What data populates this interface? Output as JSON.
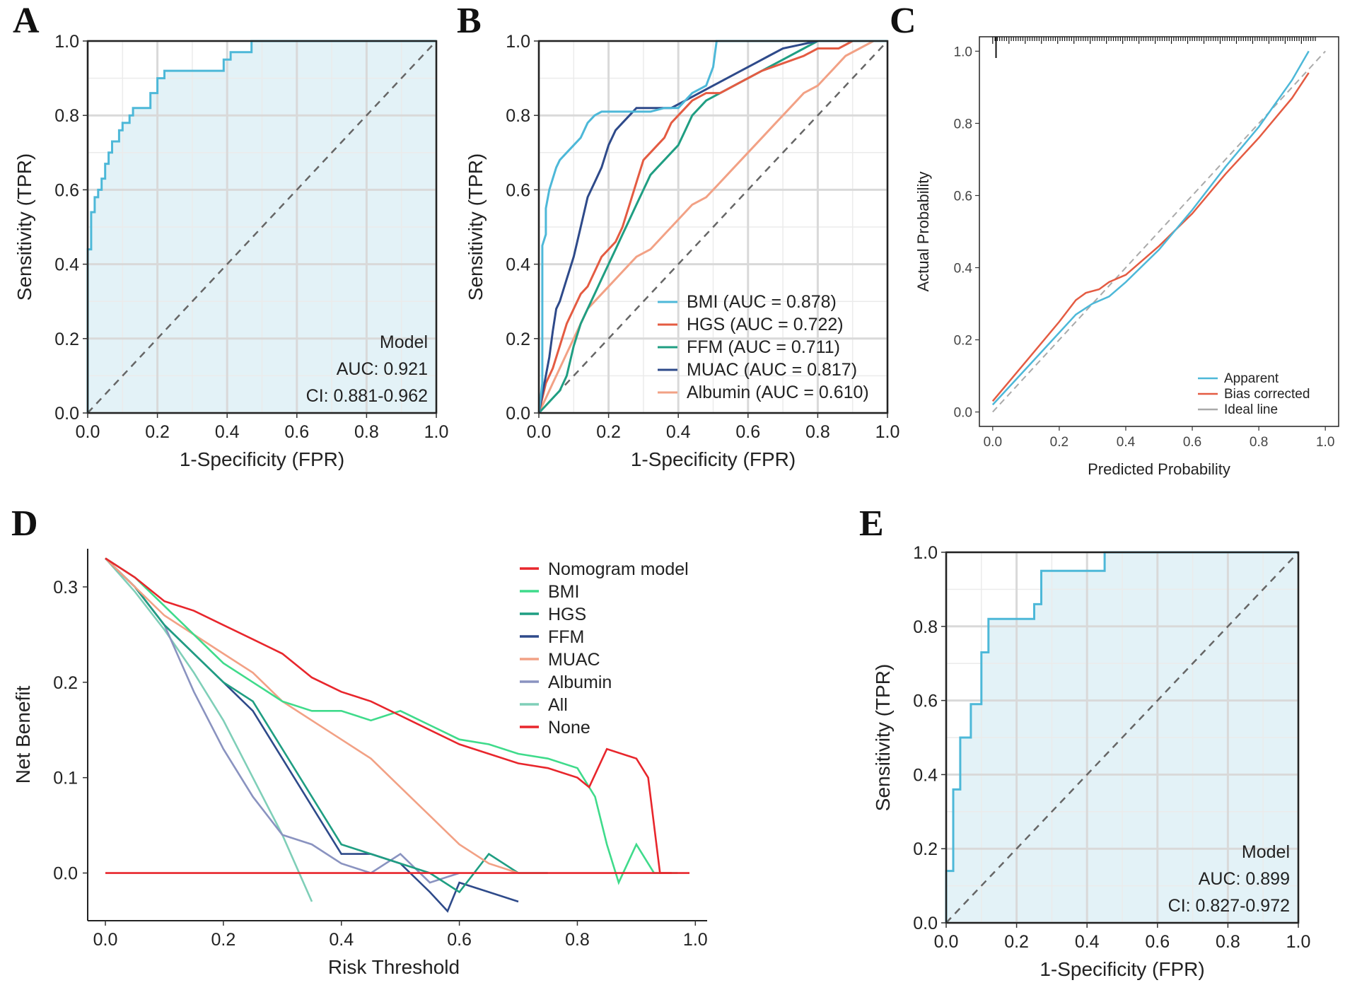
{
  "panels": {
    "A": "A",
    "B": "B",
    "C": "C",
    "D": "D",
    "E": "E"
  },
  "chart_data": [
    {
      "id": "A",
      "type": "line",
      "title": "",
      "xlabel": "1-Specificity (FPR)",
      "ylabel": "Sensitivity (TPR)",
      "xlim": [
        0,
        1
      ],
      "ylim": [
        0,
        1
      ],
      "xticks": [
        "0.0",
        "0.2",
        "0.4",
        "0.6",
        "0.8",
        "1.0"
      ],
      "yticks": [
        "0.0",
        "0.2",
        "0.4",
        "0.6",
        "0.8",
        "1.0"
      ],
      "grid": true,
      "color": "#4DB8D8",
      "fill": "#E3F2F7",
      "diagonal": true,
      "annotation": {
        "title": "Model",
        "auc": "AUC: 0.921",
        "ci": "CI: 0.881-0.962"
      },
      "x": [
        0,
        0,
        0.01,
        0.01,
        0.02,
        0.02,
        0.03,
        0.03,
        0.04,
        0.04,
        0.05,
        0.05,
        0.06,
        0.06,
        0.07,
        0.07,
        0.09,
        0.09,
        0.1,
        0.1,
        0.12,
        0.12,
        0.13,
        0.13,
        0.18,
        0.18,
        0.2,
        0.2,
        0.22,
        0.22,
        0.39,
        0.39,
        0.41,
        0.41,
        0.47,
        0.47,
        1.0
      ],
      "y": [
        0,
        0.44,
        0.44,
        0.54,
        0.54,
        0.58,
        0.58,
        0.6,
        0.6,
        0.63,
        0.63,
        0.67,
        0.67,
        0.7,
        0.7,
        0.73,
        0.73,
        0.76,
        0.76,
        0.78,
        0.78,
        0.8,
        0.8,
        0.82,
        0.82,
        0.86,
        0.86,
        0.9,
        0.9,
        0.92,
        0.92,
        0.95,
        0.95,
        0.97,
        0.97,
        1.0,
        1.0
      ]
    },
    {
      "id": "B",
      "type": "line",
      "title": "",
      "xlabel": "1-Specificity (FPR)",
      "ylabel": "Sensitivity (TPR)",
      "xlim": [
        0,
        1
      ],
      "ylim": [
        0,
        1
      ],
      "xticks": [
        "0.0",
        "0.2",
        "0.4",
        "0.6",
        "0.8",
        "1.0"
      ],
      "yticks": [
        "0.0",
        "0.2",
        "0.4",
        "0.6",
        "0.8",
        "1.0"
      ],
      "grid": true,
      "diagonal": true,
      "series": [
        {
          "name": "BMI (AUC = 0.878)",
          "color": "#4DB8D8",
          "x": [
            0,
            0.01,
            0.01,
            0.02,
            0.02,
            0.03,
            0.04,
            0.05,
            0.06,
            0.08,
            0.1,
            0.12,
            0.14,
            0.16,
            0.18,
            0.2,
            0.24,
            0.28,
            0.32,
            0.36,
            0.4,
            0.44,
            0.48,
            0.5,
            0.51,
            0.55,
            0.6,
            0.7,
            0.8,
            0.9,
            1.0
          ],
          "y": [
            0,
            0.08,
            0.45,
            0.48,
            0.55,
            0.6,
            0.63,
            0.66,
            0.68,
            0.7,
            0.72,
            0.74,
            0.78,
            0.8,
            0.81,
            0.81,
            0.81,
            0.81,
            0.81,
            0.82,
            0.82,
            0.86,
            0.88,
            0.93,
            1.0,
            1.0,
            1.0,
            1.0,
            1.0,
            1.0,
            1.0
          ]
        },
        {
          "name": "HGS (AUC = 0.722)",
          "color": "#E45B42",
          "x": [
            0,
            0.02,
            0.04,
            0.06,
            0.08,
            0.1,
            0.12,
            0.14,
            0.16,
            0.18,
            0.2,
            0.22,
            0.24,
            0.26,
            0.28,
            0.3,
            0.32,
            0.34,
            0.36,
            0.38,
            0.4,
            0.42,
            0.44,
            0.48,
            0.52,
            0.56,
            0.6,
            0.64,
            0.7,
            0.76,
            0.8,
            0.86,
            0.9,
            1.0
          ],
          "y": [
            0,
            0.08,
            0.12,
            0.18,
            0.24,
            0.28,
            0.32,
            0.34,
            0.38,
            0.42,
            0.44,
            0.46,
            0.5,
            0.56,
            0.62,
            0.68,
            0.7,
            0.72,
            0.74,
            0.78,
            0.8,
            0.82,
            0.84,
            0.86,
            0.86,
            0.88,
            0.9,
            0.92,
            0.94,
            0.96,
            0.98,
            0.98,
            1.0,
            1.0
          ]
        },
        {
          "name": "FFM (AUC = 0.711)",
          "color": "#1F9E82",
          "x": [
            0,
            0.02,
            0.04,
            0.06,
            0.08,
            0.1,
            0.12,
            0.14,
            0.16,
            0.18,
            0.2,
            0.22,
            0.24,
            0.26,
            0.28,
            0.3,
            0.32,
            0.34,
            0.36,
            0.38,
            0.4,
            0.42,
            0.44,
            0.48,
            0.52,
            0.56,
            0.6,
            0.64,
            0.7,
            0.76,
            0.8,
            0.9,
            1.0
          ],
          "y": [
            0,
            0.02,
            0.04,
            0.06,
            0.1,
            0.18,
            0.24,
            0.28,
            0.32,
            0.36,
            0.4,
            0.44,
            0.48,
            0.52,
            0.56,
            0.6,
            0.64,
            0.66,
            0.68,
            0.7,
            0.72,
            0.76,
            0.8,
            0.84,
            0.86,
            0.88,
            0.9,
            0.92,
            0.95,
            0.98,
            1.0,
            1.0,
            1.0
          ]
        },
        {
          "name": "MUAC (AUC = 0.817)",
          "color": "#2E4A8A",
          "x": [
            0,
            0.01,
            0.02,
            0.03,
            0.04,
            0.05,
            0.06,
            0.08,
            0.1,
            0.12,
            0.14,
            0.16,
            0.18,
            0.2,
            0.22,
            0.24,
            0.26,
            0.28,
            0.3,
            0.34,
            0.38,
            0.42,
            0.46,
            0.5,
            0.54,
            0.58,
            0.62,
            0.66,
            0.7,
            0.8,
            0.9,
            1.0
          ],
          "y": [
            0,
            0.05,
            0.1,
            0.15,
            0.22,
            0.28,
            0.3,
            0.36,
            0.42,
            0.5,
            0.58,
            0.62,
            0.66,
            0.72,
            0.76,
            0.78,
            0.8,
            0.82,
            0.82,
            0.82,
            0.82,
            0.84,
            0.86,
            0.88,
            0.9,
            0.92,
            0.94,
            0.96,
            0.98,
            1.0,
            1.0,
            1.0
          ]
        },
        {
          "name": "Albumin (AUC = 0.610)",
          "color": "#F2A185",
          "x": [
            0,
            0.02,
            0.04,
            0.06,
            0.08,
            0.1,
            0.12,
            0.14,
            0.16,
            0.18,
            0.2,
            0.24,
            0.28,
            0.32,
            0.36,
            0.4,
            0.44,
            0.48,
            0.52,
            0.56,
            0.6,
            0.64,
            0.68,
            0.72,
            0.76,
            0.8,
            0.84,
            0.88,
            0.92,
            0.96,
            1.0
          ],
          "y": [
            0,
            0.04,
            0.08,
            0.12,
            0.16,
            0.2,
            0.24,
            0.28,
            0.3,
            0.32,
            0.34,
            0.38,
            0.42,
            0.44,
            0.48,
            0.52,
            0.56,
            0.58,
            0.62,
            0.66,
            0.7,
            0.74,
            0.78,
            0.82,
            0.86,
            0.88,
            0.92,
            0.96,
            0.98,
            1.0,
            1.0
          ]
        }
      ]
    },
    {
      "id": "C",
      "type": "line",
      "title": "",
      "xlabel": "Predicted Probability",
      "ylabel": "Actual Probability",
      "xlim": [
        0,
        1
      ],
      "ylim": [
        0,
        1
      ],
      "xticks": [
        "0.0",
        "0.2",
        "0.4",
        "0.6",
        "0.8",
        "1.0"
      ],
      "yticks": [
        "0.0",
        "0.2",
        "0.4",
        "0.6",
        "0.8",
        "1.0"
      ],
      "grid": false,
      "series": [
        {
          "name": "Apparent",
          "color": "#4DB8D8",
          "x": [
            0,
            0.1,
            0.2,
            0.25,
            0.3,
            0.35,
            0.4,
            0.5,
            0.6,
            0.7,
            0.8,
            0.9,
            0.95
          ],
          "y": [
            0.02,
            0.12,
            0.22,
            0.27,
            0.3,
            0.32,
            0.36,
            0.45,
            0.56,
            0.68,
            0.79,
            0.92,
            1.0
          ]
        },
        {
          "name": "Bias corrected",
          "color": "#E45B42",
          "x": [
            0,
            0.1,
            0.2,
            0.25,
            0.28,
            0.32,
            0.35,
            0.4,
            0.5,
            0.6,
            0.7,
            0.8,
            0.9,
            0.95
          ],
          "y": [
            0.03,
            0.14,
            0.25,
            0.31,
            0.33,
            0.34,
            0.36,
            0.38,
            0.46,
            0.55,
            0.66,
            0.76,
            0.87,
            0.94
          ]
        },
        {
          "name": "Ideal line",
          "color": "#AAAAAA",
          "dashed": true,
          "x": [
            0,
            1
          ],
          "y": [
            0,
            1
          ]
        }
      ]
    },
    {
      "id": "D",
      "type": "line",
      "title": "",
      "xlabel": "Risk Threshold",
      "ylabel": "Net Benefit",
      "xlim": [
        -0.03,
        1.02
      ],
      "ylim": [
        -0.05,
        0.34
      ],
      "xticks": [
        "0.0",
        "0.2",
        "0.4",
        "0.6",
        "0.8",
        "1.0"
      ],
      "yticks": [
        "0.0",
        "0.1",
        "0.2",
        "0.3"
      ],
      "grid": false,
      "series": [
        {
          "name": "Nomogram model",
          "color": "#E8262C",
          "x": [
            0,
            0.05,
            0.1,
            0.15,
            0.2,
            0.25,
            0.3,
            0.35,
            0.4,
            0.45,
            0.5,
            0.55,
            0.6,
            0.65,
            0.7,
            0.75,
            0.8,
            0.82,
            0.85,
            0.9,
            0.92,
            0.94,
            0.96
          ],
          "y": [
            0.33,
            0.31,
            0.285,
            0.275,
            0.26,
            0.245,
            0.23,
            0.205,
            0.19,
            0.18,
            0.165,
            0.15,
            0.135,
            0.125,
            0.115,
            0.11,
            0.1,
            0.09,
            0.13,
            0.12,
            0.1,
            0.0,
            0.0
          ]
        },
        {
          "name": "BMI",
          "color": "#3FDB8B",
          "x": [
            0,
            0.05,
            0.1,
            0.15,
            0.2,
            0.25,
            0.3,
            0.35,
            0.4,
            0.45,
            0.5,
            0.55,
            0.6,
            0.65,
            0.7,
            0.75,
            0.8,
            0.83,
            0.85,
            0.87,
            0.9,
            0.93,
            0.97
          ],
          "y": [
            0.33,
            0.31,
            0.28,
            0.25,
            0.22,
            0.2,
            0.18,
            0.17,
            0.17,
            0.16,
            0.17,
            0.155,
            0.14,
            0.135,
            0.125,
            0.12,
            0.11,
            0.08,
            0.03,
            -0.01,
            0.03,
            0.0,
            0.0
          ]
        },
        {
          "name": "HGS",
          "color": "#1F9E82",
          "x": [
            0,
            0.05,
            0.1,
            0.15,
            0.2,
            0.25,
            0.3,
            0.35,
            0.4,
            0.45,
            0.5,
            0.55,
            0.6,
            0.65,
            0.7,
            0.75
          ],
          "y": [
            0.33,
            0.3,
            0.26,
            0.23,
            0.2,
            0.18,
            0.13,
            0.08,
            0.03,
            0.02,
            0.01,
            0.0,
            -0.02,
            0.02,
            0.0,
            0.0
          ]
        },
        {
          "name": "FFM",
          "color": "#2E4A8A",
          "x": [
            0,
            0.05,
            0.1,
            0.15,
            0.2,
            0.25,
            0.3,
            0.35,
            0.4,
            0.45,
            0.5,
            0.55,
            0.58,
            0.6,
            0.65,
            0.7
          ],
          "y": [
            0.33,
            0.3,
            0.26,
            0.23,
            0.2,
            0.17,
            0.12,
            0.07,
            0.02,
            0.02,
            0.01,
            -0.02,
            -0.04,
            -0.01,
            -0.02,
            -0.03
          ]
        },
        {
          "name": "MUAC",
          "color": "#F2A185",
          "x": [
            0,
            0.05,
            0.1,
            0.15,
            0.2,
            0.25,
            0.3,
            0.35,
            0.4,
            0.45,
            0.5,
            0.55,
            0.6,
            0.65,
            0.7
          ],
          "y": [
            0.33,
            0.3,
            0.27,
            0.25,
            0.23,
            0.21,
            0.18,
            0.16,
            0.14,
            0.12,
            0.09,
            0.06,
            0.03,
            0.01,
            0.0
          ]
        },
        {
          "name": "Albumin",
          "color": "#8A93C0",
          "x": [
            0,
            0.05,
            0.1,
            0.15,
            0.2,
            0.25,
            0.3,
            0.35,
            0.4,
            0.45,
            0.5,
            0.55,
            0.6
          ],
          "y": [
            0.33,
            0.3,
            0.26,
            0.19,
            0.13,
            0.08,
            0.04,
            0.03,
            0.01,
            0.0,
            0.02,
            -0.01,
            0.0
          ]
        },
        {
          "name": "All",
          "color": "#7FCFB8",
          "x": [
            0,
            0.05,
            0.1,
            0.15,
            0.2,
            0.25,
            0.3,
            0.35
          ],
          "y": [
            0.33,
            0.295,
            0.255,
            0.21,
            0.16,
            0.1,
            0.04,
            -0.03
          ]
        },
        {
          "name": "None",
          "color": "#E8262C",
          "x": [
            0,
            0.99
          ],
          "y": [
            0,
            0
          ]
        }
      ]
    },
    {
      "id": "E",
      "type": "line",
      "title": "",
      "xlabel": "1-Specificity (FPR)",
      "ylabel": "Sensitivity (TPR)",
      "xlim": [
        0,
        1
      ],
      "ylim": [
        0,
        1
      ],
      "xticks": [
        "0.0",
        "0.2",
        "0.4",
        "0.6",
        "0.8",
        "1.0"
      ],
      "yticks": [
        "0.0",
        "0.2",
        "0.4",
        "0.6",
        "0.8",
        "1.0"
      ],
      "grid": true,
      "color": "#4DB8D8",
      "fill": "#E3F2F7",
      "diagonal": true,
      "annotation": {
        "title": "Model",
        "auc": "AUC: 0.899",
        "ci": "CI: 0.827-0.972"
      },
      "x": [
        0,
        0,
        0.02,
        0.02,
        0.04,
        0.04,
        0.07,
        0.07,
        0.1,
        0.1,
        0.12,
        0.12,
        0.14,
        0.14,
        0.25,
        0.25,
        0.27,
        0.27,
        0.45,
        0.45,
        1.0
      ],
      "y": [
        0,
        0.14,
        0.14,
        0.36,
        0.36,
        0.5,
        0.5,
        0.59,
        0.59,
        0.73,
        0.73,
        0.82,
        0.82,
        0.82,
        0.82,
        0.86,
        0.86,
        0.95,
        0.95,
        1.0,
        1.0
      ]
    }
  ]
}
